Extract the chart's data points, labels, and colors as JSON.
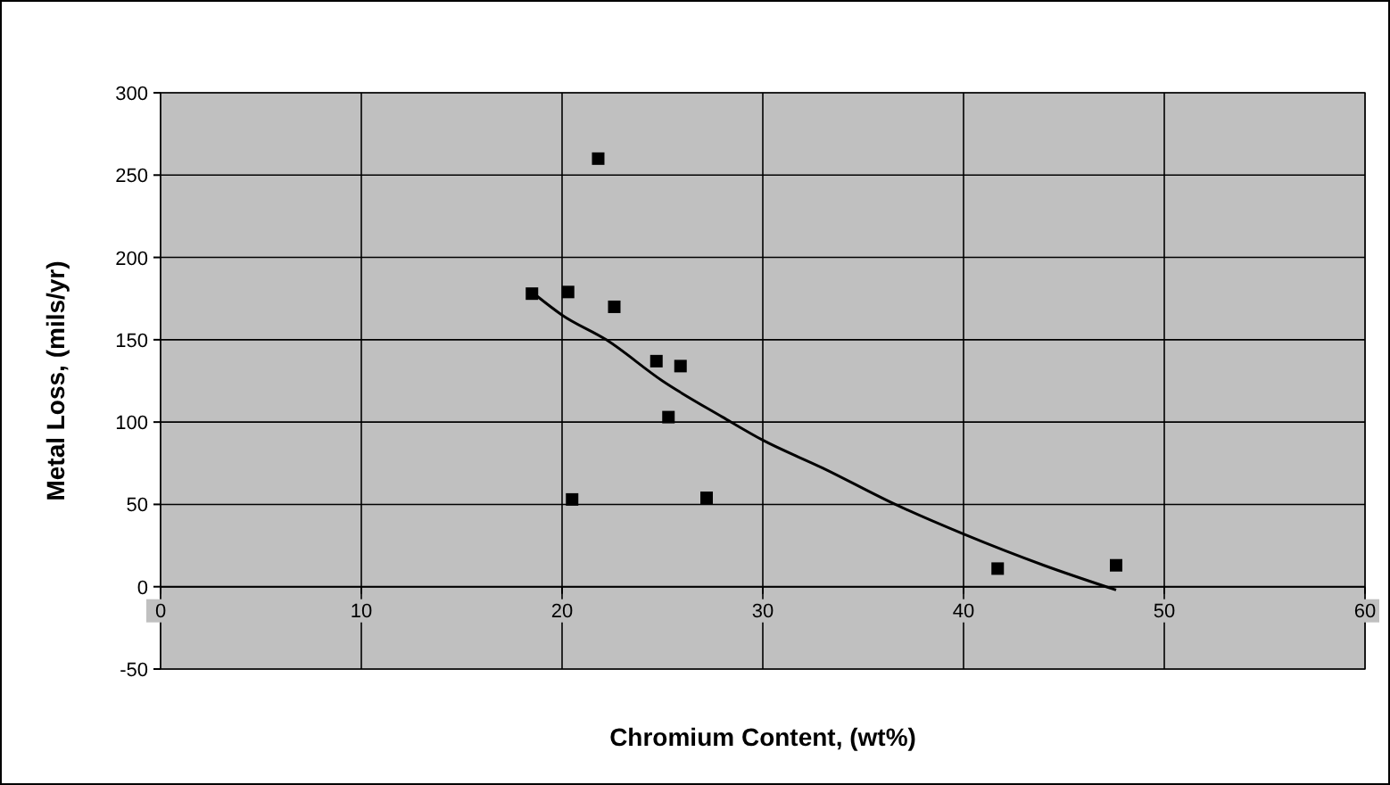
{
  "chart_data": {
    "type": "scatter",
    "xlabel": "Chromium Content, (wt%)",
    "ylabel": "Metal Loss, (mils/yr)",
    "xlim": [
      0,
      60
    ],
    "ylim": [
      -50,
      300
    ],
    "xticks": [
      0,
      10,
      20,
      30,
      40,
      50,
      60
    ],
    "yticks": [
      -50,
      0,
      50,
      100,
      150,
      200,
      250,
      300
    ],
    "grid": true,
    "series": [
      {
        "marker": "square",
        "color": "#000000",
        "x": [
          18.5,
          20.3,
          20.5,
          21.8,
          22.6,
          24.7,
          25.3,
          25.9,
          27.2,
          41.7,
          47.6
        ],
        "values": [
          178,
          179,
          53,
          260,
          170,
          137,
          103,
          134,
          54,
          11,
          13
        ]
      },
      {
        "type": "line",
        "color": "#000000",
        "x": [
          18.6,
          20,
          22.2,
          25,
          28,
          30,
          33,
          36.6,
          40,
          44,
          47.6
        ],
        "values": [
          178,
          165,
          150,
          125,
          103,
          89,
          72,
          50,
          32,
          13,
          -2
        ]
      }
    ]
  }
}
